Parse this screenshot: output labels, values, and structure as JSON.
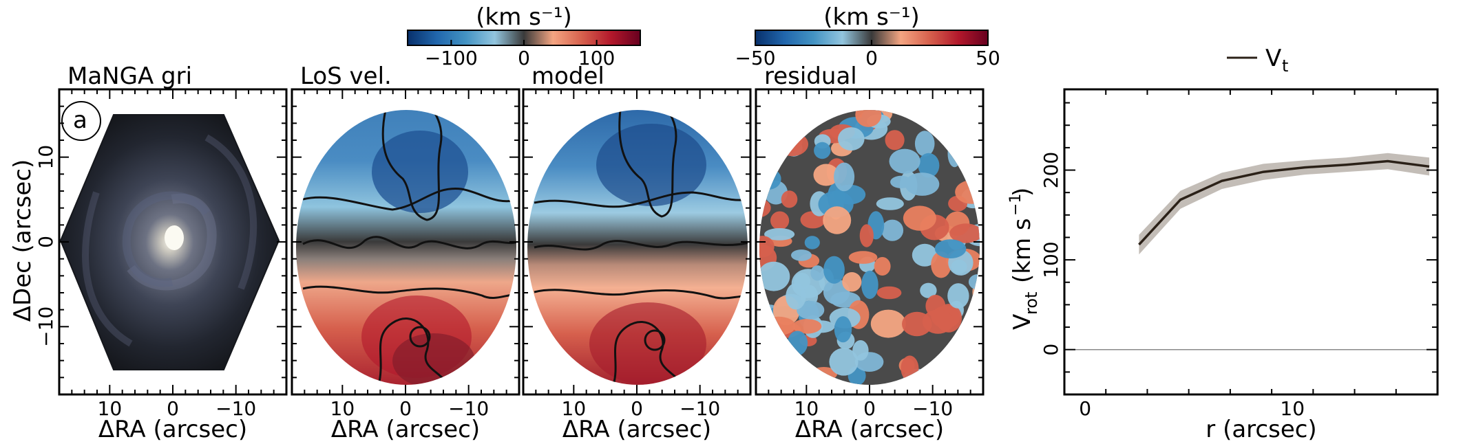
{
  "figure": {
    "panel_label": "a",
    "xlabel": "ΔRA (arcsec)",
    "ylabel": "ΔDec (arcsec)"
  },
  "panels": [
    {
      "title": "MaNGA gri",
      "kind": "image"
    },
    {
      "title": "LoS vel.",
      "kind": "velocity"
    },
    {
      "title": "model",
      "kind": "model"
    },
    {
      "title": "residual",
      "kind": "residual"
    }
  ],
  "map_ticks": {
    "x": [
      {
        "v": 10,
        "label": "10"
      },
      {
        "v": 0,
        "label": "0"
      },
      {
        "v": -10,
        "label": "−10"
      }
    ],
    "y": [
      {
        "v": 10,
        "label": "10"
      },
      {
        "v": 0,
        "label": "0"
      },
      {
        "v": -10,
        "label": "−10"
      }
    ],
    "xlim": [
      18,
      -18
    ],
    "ylim": [
      -18,
      18
    ]
  },
  "colorbars": [
    {
      "label": "(km s⁻¹)",
      "min": -160,
      "max": 160,
      "ticks": [
        {
          "v": -100,
          "label": "−100"
        },
        {
          "v": 0,
          "label": "0"
        },
        {
          "v": 100,
          "label": "100"
        }
      ]
    },
    {
      "label": "(km s⁻¹)",
      "min": -50,
      "max": 50,
      "ticks": [
        {
          "v": -50,
          "label": "−50"
        },
        {
          "v": 0,
          "label": "0"
        },
        {
          "v": 50,
          "label": "50"
        }
      ]
    }
  ],
  "colors": {
    "cmap": [
      "#08306b",
      "#2166ac",
      "#4393c3",
      "#92c5de",
      "#3a3a3a",
      "#f4a582",
      "#d6604d",
      "#b2182b",
      "#67001f"
    ],
    "line": "#2b2118",
    "band": "#b8b2aa"
  },
  "chart_data": {
    "type": "line",
    "xlabel": "r (arcsec)",
    "ylabel": "V_rot (km s⁻¹)",
    "xlim": [
      -1,
      17
    ],
    "ylim": [
      -50,
      290
    ],
    "xticks": [
      {
        "v": 0,
        "label": "0"
      },
      {
        "v": 10,
        "label": "10"
      }
    ],
    "yticks": [
      {
        "v": 0,
        "label": "0"
      },
      {
        "v": 100,
        "label": "100"
      },
      {
        "v": 200,
        "label": "200"
      }
    ],
    "legend": {
      "label": "V",
      "sub": "t",
      "position": "top-center"
    },
    "series": [
      {
        "name": "V_t",
        "x": [
          2.6,
          4.6,
          6.6,
          8.6,
          10.6,
          12.6,
          14.6,
          16.6
        ],
        "y": [
          117,
          167,
          188,
          198,
          203,
          206,
          210,
          204
        ],
        "err": [
          11,
          10,
          9,
          9,
          8,
          8,
          9,
          10
        ]
      }
    ],
    "zero_line": 0
  }
}
